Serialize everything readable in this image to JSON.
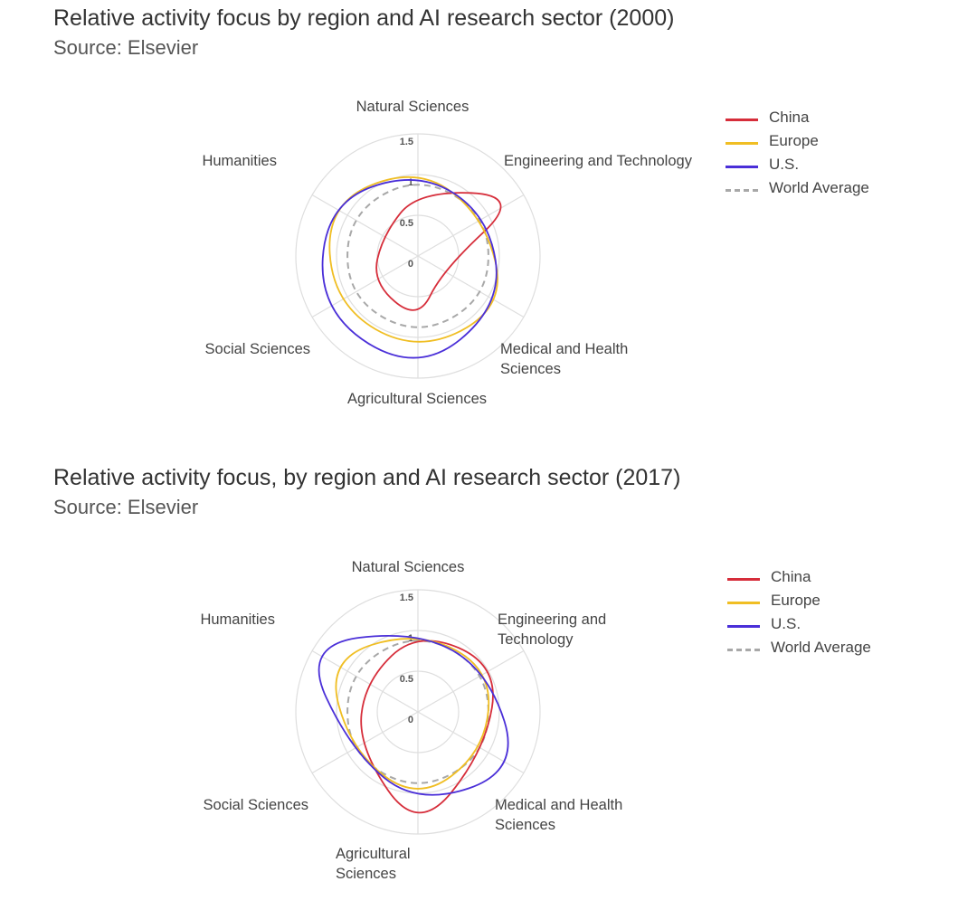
{
  "colors": {
    "china": "#d62d3a",
    "europe": "#f0be23",
    "us": "#4a2fd8",
    "world": "#a8a8a8",
    "grid": "#dedede"
  },
  "chart_data": [
    {
      "type": "radar",
      "title": "Relative activity focus by region and AI research sector (2000)",
      "subtitle": "Source: Elsevier",
      "categories": [
        "Natural Sciences",
        "Engineering and Technology",
        "Medical and Health Sciences",
        "Agricultural Sciences",
        "Social Sciences",
        "Humanities"
      ],
      "category_label_lines": [
        [
          "Natural Sciences"
        ],
        [
          "Engineering and Technology"
        ],
        [
          "Medical and Health",
          "Sciences"
        ],
        [
          "Agricultural Sciences"
        ],
        [
          "Social Sciences"
        ],
        [
          "Humanities"
        ]
      ],
      "ticks": [
        "0",
        "0.5",
        "1",
        "1.5"
      ],
      "tick_values": [
        0,
        0.5,
        1,
        1.5
      ],
      "rlim": [
        0,
        1.5
      ],
      "grid": true,
      "legend_position": "top-right",
      "series": [
        {
          "name": "China",
          "key": "china",
          "values": [
            0.8,
            1.5,
            0.35,
            0.8,
            0.65,
            0.5
          ],
          "dashed": false
        },
        {
          "name": "Europe",
          "key": "europe",
          "values": [
            1.1,
            0.95,
            1.25,
            1.2,
            1.2,
            1.3
          ],
          "dashed": false
        },
        {
          "name": "U.S.",
          "key": "us",
          "values": [
            1.05,
            1.0,
            1.2,
            1.45,
            1.4,
            1.3
          ],
          "dashed": false
        },
        {
          "name": "World Average",
          "key": "world",
          "values": [
            1,
            1,
            1,
            1,
            1,
            1
          ],
          "dashed": true
        }
      ]
    },
    {
      "type": "radar",
      "title": "Relative activity focus, by region and AI research sector (2017)",
      "subtitle": "Source: Elsevier",
      "categories": [
        "Natural Sciences",
        "Engineering and Technology",
        "Medical and Health Sciences",
        "Agricultural Sciences",
        "Social Sciences",
        "Humanities"
      ],
      "category_label_lines": [
        [
          "Natural Sciences"
        ],
        [
          "Engineering and",
          "Technology"
        ],
        [
          "Medical and Health",
          "Sciences"
        ],
        [
          "Agricultural",
          "Sciences"
        ],
        [
          "Social Sciences"
        ],
        [
          "Humanities"
        ]
      ],
      "ticks": [
        "0",
        "0.5",
        "1",
        "1.5"
      ],
      "tick_values": [
        0,
        0.5,
        1,
        1.5
      ],
      "rlim": [
        0,
        1.5
      ],
      "grid": true,
      "legend_position": "top-right",
      "series": [
        {
          "name": "China",
          "key": "china",
          "values": [
            1.0,
            1.15,
            0.95,
            1.5,
            0.85,
            0.75
          ],
          "dashed": false
        },
        {
          "name": "Europe",
          "key": "europe",
          "values": [
            1.0,
            1.05,
            0.95,
            1.1,
            0.95,
            1.3
          ],
          "dashed": false
        },
        {
          "name": "U.S.",
          "key": "us",
          "values": [
            1.0,
            1.0,
            1.45,
            1.15,
            0.95,
            1.65
          ],
          "dashed": false
        },
        {
          "name": "World Average",
          "key": "world",
          "values": [
            1,
            1,
            1,
            1,
            1,
            1
          ],
          "dashed": true
        }
      ]
    }
  ]
}
